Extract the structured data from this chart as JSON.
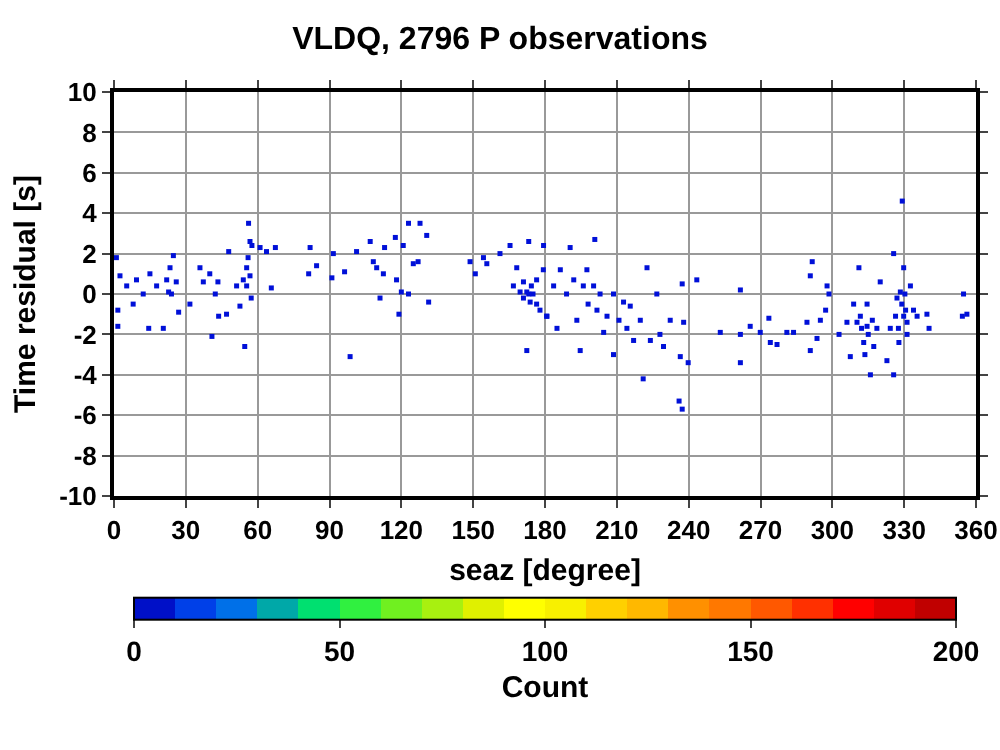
{
  "chart_data": {
    "type": "scatter",
    "title": "VLDQ, 2796 P observations",
    "xlabel": "seaz [degree]",
    "ylabel": "Time residual [s]",
    "clabel": "Count",
    "x": [
      1,
      2.5,
      1.6,
      1.6,
      5.3,
      8,
      9.4,
      12.2,
      14.5,
      15,
      17.8,
      20.6,
      22,
      22.8,
      23.4,
      24.8,
      24,
      26,
      27,
      31.7,
      35.9,
      37.3,
      40,
      40.9,
      42.3,
      43.4,
      43.7,
      47,
      47.9,
      51.2,
      52.6,
      54,
      54.6,
      55.4,
      56,
      56.2,
      56.8,
      57.3,
      57.6,
      55.4,
      56.8,
      61,
      63.7,
      65.7,
      67.4,
      81.9,
      84.6,
      81.3,
      91.6,
      91,
      96.3,
      98.6,
      101.3,
      107,
      108.3,
      109.7,
      111.1,
      112.5,
      113,
      117.5,
      118,
      119,
      120,
      120.8,
      123,
      123,
      125,
      127,
      127.8,
      130.6,
      131.4,
      148.7,
      150.9,
      154.3,
      155.7,
      161.2,
      165.4,
      166.8,
      168.2,
      169.6,
      171,
      172.4,
      173.2,
      173.8,
      172.4,
      174.3,
      175,
      176.5,
      177.9,
      179.3,
      180.7,
      176.5,
      173.2,
      171,
      179.4,
      180.8,
      183.6,
      185,
      186.4,
      189,
      190.5,
      192,
      193.3,
      194.7,
      196,
      197.5,
      198,
      200.3,
      200.8,
      201.7,
      203,
      204.5,
      205.9,
      208.6,
      208.6,
      210.9,
      212.8,
      214.2,
      215.6,
      217,
      219.8,
      221,
      222.6,
      224,
      226.7,
      228,
      229.5,
      232.3,
      236.5,
      237.3,
      237.9,
      236,
      237.3,
      239.8,
      243.4,
      253.2,
      261.6,
      261.6,
      261.6,
      265.7,
      269.9,
      273.5,
      274.1,
      276.9,
      281,
      283.8,
      289.4,
      290.8,
      291.6,
      290.8,
      293.6,
      295,
      297.2,
      297.8,
      298.6,
      302.8,
      306.1,
      307.5,
      308.9,
      310.3,
      311.1,
      311.7,
      312.2,
      313.1,
      313.6,
      314.5,
      314.5,
      315,
      315.9,
      316.7,
      317.3,
      318.6,
      320,
      322.8,
      324.2,
      325.6,
      325.6,
      326.4,
      327,
      327.6,
      327.8,
      328.4,
      329,
      329.2,
      329.8,
      329.8,
      330.3,
      330.6,
      331.2,
      331.2,
      332.6,
      333.9,
      335.4,
      339.5,
      340.4,
      354.8,
      356.2,
      354.3
    ],
    "values": [
      1.8,
      0.9,
      -0.8,
      -1.6,
      0.4,
      -0.5,
      0.7,
      0,
      -1.7,
      1,
      0.4,
      -1.7,
      0.7,
      0.1,
      1.3,
      1.9,
      0,
      0.6,
      -0.9,
      -0.5,
      1.3,
      0.6,
      1,
      -2.1,
      0,
      0.6,
      -1.1,
      -1,
      2.1,
      0.4,
      -0.6,
      0.7,
      -2.6,
      1.3,
      1.8,
      3.5,
      2.6,
      -0.2,
      2.4,
      0.4,
      0.9,
      2.3,
      2.1,
      0.3,
      2.3,
      2.3,
      1.4,
      1,
      2,
      0.8,
      1.1,
      -3.1,
      2.1,
      2.6,
      1.6,
      1.3,
      -0.2,
      1,
      2.3,
      2.8,
      0.7,
      -1,
      0.1,
      2.4,
      3.5,
      0,
      1.5,
      1.6,
      3.5,
      2.9,
      -0.4,
      1.6,
      1,
      1.8,
      1.5,
      2,
      2.4,
      0.4,
      1.3,
      0.1,
      0.6,
      0.1,
      2.6,
      -0.4,
      -2.8,
      0.4,
      0,
      -0.5,
      -0.8,
      1.2,
      -1.1,
      0.7,
      0,
      -0.2,
      2.4,
      -1.1,
      0.4,
      -1.7,
      1.2,
      0,
      2.3,
      0.7,
      -1.3,
      -2.8,
      0.4,
      1.2,
      -0.5,
      0.4,
      2.7,
      -0.8,
      0,
      -1.9,
      -1.1,
      0,
      -3,
      -1.3,
      -0.4,
      -1.7,
      -0.6,
      -2.3,
      -1.3,
      -4.2,
      1.3,
      -2.3,
      0,
      -2,
      -2.6,
      -1.3,
      -3.1,
      0.5,
      -1.4,
      -5.3,
      -5.7,
      -3.4,
      0.7,
      -1.9,
      0.2,
      -2,
      -3.4,
      -1.6,
      -1.9,
      -1.2,
      -2.4,
      -2.5,
      -1.9,
      -1.9,
      -1.4,
      0.9,
      1.6,
      -2.8,
      -2.2,
      -1.3,
      -0.8,
      0.4,
      0,
      -2,
      -1.4,
      -3.1,
      -0.5,
      -1.4,
      1.3,
      -1.1,
      -1.7,
      -2.4,
      -3,
      -0.5,
      -1.6,
      -2,
      -4,
      -1.3,
      -2.6,
      -1.7,
      0.6,
      -3.3,
      -1.7,
      2,
      -4,
      -1.1,
      -0.2,
      -1.7,
      -2.4,
      0.1,
      -0.5,
      4.6,
      -1.1,
      1.3,
      0,
      -0.8,
      -1.4,
      -2,
      0.4,
      -0.8,
      -1.1,
      -1,
      -1.7,
      0,
      -1,
      -1.1
    ],
    "color": "#0010d8",
    "xlim": [
      0,
      360
    ],
    "xticks": [
      0,
      30,
      60,
      90,
      120,
      150,
      180,
      210,
      240,
      270,
      300,
      330,
      360
    ],
    "ylim": [
      -10,
      10
    ],
    "yticks": [
      -10,
      -8,
      -6,
      -4,
      -2,
      0,
      2,
      4,
      6,
      8,
      10
    ],
    "clim": [
      0,
      200
    ],
    "cticks": [
      0,
      50,
      100,
      150,
      200
    ],
    "grid": true,
    "marker": "square"
  }
}
